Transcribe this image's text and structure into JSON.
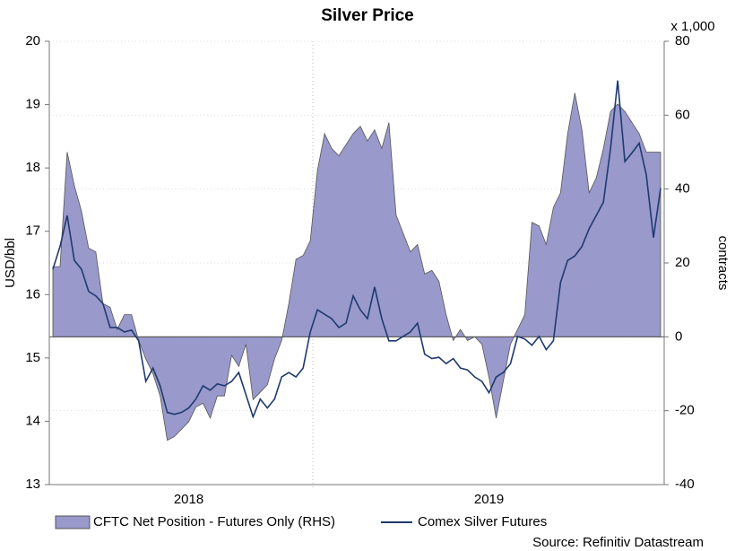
{
  "chart_data": {
    "type": "line",
    "title": "Silver Price",
    "y_label": "USD/bbl",
    "y2_label": "contracts",
    "y2_multiplier_label": "x 1,000",
    "source": "Source: Refinitiv Datastream",
    "categories": [
      null,
      null,
      null,
      null,
      null,
      null,
      null,
      null,
      null,
      null,
      null,
      null,
      null,
      null,
      null,
      null,
      null,
      null,
      null,
      "2018",
      null,
      null,
      null,
      null,
      null,
      null,
      null,
      null,
      null,
      null,
      null,
      null,
      null,
      null,
      null,
      null,
      null,
      null,
      null,
      null,
      null,
      null,
      null,
      null,
      null,
      null,
      null,
      null,
      null,
      null,
      null,
      null,
      null,
      null,
      null,
      null,
      null,
      null,
      null,
      null,
      null,
      "2019",
      null,
      null,
      null,
      null,
      null,
      null,
      null,
      null,
      null,
      null,
      null,
      null,
      null,
      null,
      null,
      null,
      null,
      null,
      null,
      null,
      null,
      null,
      null,
      null
    ],
    "ylim": [
      13,
      20
    ],
    "yticks": [
      13,
      14,
      15,
      16,
      17,
      18,
      19,
      20
    ],
    "y2lim": [
      -40,
      80
    ],
    "y2ticks": [
      -40,
      -20,
      0,
      20,
      40,
      60,
      80
    ],
    "grid": true,
    "series": [
      {
        "name": "CFTC Net Position - Futures Only (RHS)",
        "type": "area",
        "axis": "y2",
        "color": "#9999cc",
        "values": [
          19,
          19,
          50,
          41,
          34,
          24,
          23,
          9,
          8,
          2,
          6,
          6,
          -1,
          -6,
          -10,
          -16,
          -28,
          -27,
          -25,
          -23,
          -19,
          -18,
          -22,
          -16,
          -16,
          -5,
          -8,
          -2,
          -17,
          -15,
          -13,
          -6,
          -1,
          9,
          21,
          22,
          26,
          45,
          55,
          51,
          49,
          52,
          55,
          57,
          53,
          56,
          51,
          58,
          33,
          28,
          23,
          25,
          17,
          18,
          15,
          6,
          -1,
          2,
          -1,
          0,
          -2,
          -11,
          -22,
          -12,
          -2,
          2,
          6,
          31,
          30,
          25,
          35,
          39,
          55,
          66,
          56,
          39,
          43,
          51,
          61,
          63,
          61,
          58,
          55,
          50,
          50,
          50
        ]
      },
      {
        "name": "Comex Silver Futures",
        "type": "line",
        "axis": "y",
        "color": "#1f3a6e",
        "values": [
          16.4,
          16.76,
          17.25,
          16.54,
          16.4,
          16.05,
          15.98,
          15.86,
          15.48,
          15.48,
          15.41,
          15.44,
          15.27,
          14.63,
          14.84,
          14.56,
          14.14,
          14.11,
          14.14,
          14.21,
          14.35,
          14.56,
          14.49,
          14.59,
          14.56,
          14.63,
          14.77,
          14.42,
          14.07,
          14.35,
          14.21,
          14.35,
          14.7,
          14.77,
          14.7,
          14.84,
          15.41,
          15.76,
          15.69,
          15.62,
          15.48,
          15.55,
          15.98,
          15.76,
          15.62,
          16.12,
          15.62,
          15.27,
          15.27,
          15.34,
          15.41,
          15.55,
          15.06,
          14.99,
          15.01,
          14.91,
          14.99,
          14.84,
          14.81,
          14.7,
          14.63,
          14.45,
          14.7,
          14.77,
          14.91,
          15.34,
          15.3,
          15.2,
          15.34,
          15.13,
          15.27,
          16.19,
          16.54,
          16.61,
          16.76,
          17.04,
          17.25,
          17.46,
          18.31,
          19.38,
          18.1,
          18.24,
          18.39,
          17.89,
          16.9,
          17.68
        ]
      }
    ]
  }
}
